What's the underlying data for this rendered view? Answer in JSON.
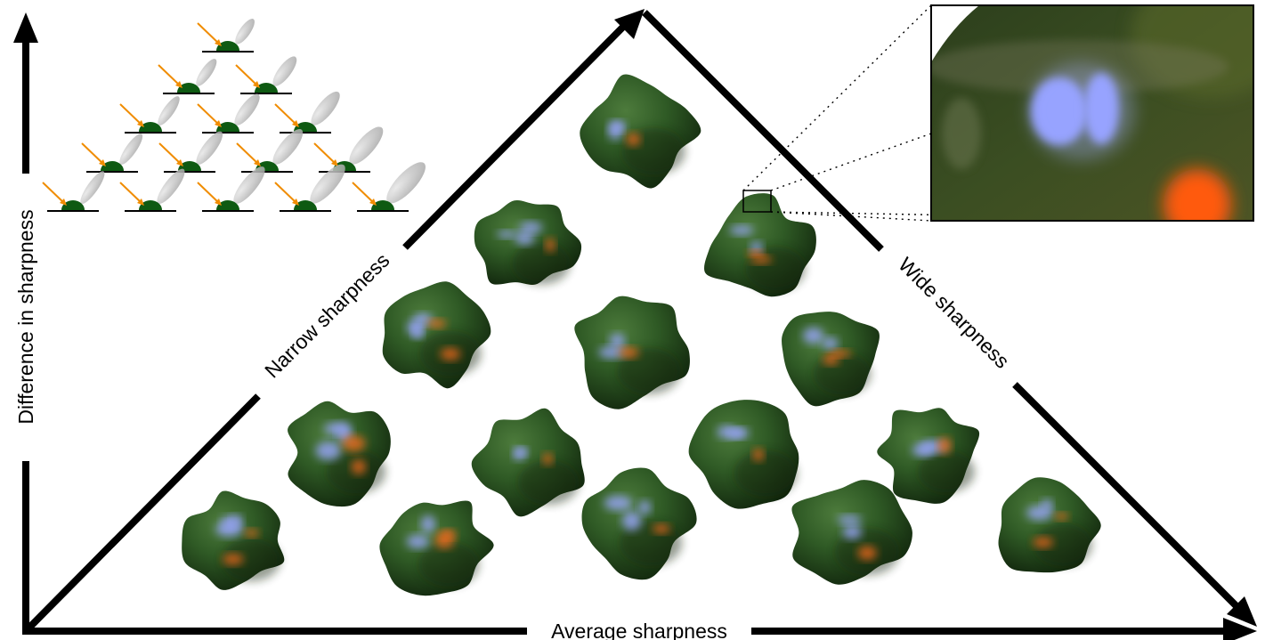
{
  "labels": {
    "y_axis": "Difference in sharpness",
    "x_axis": "Average sharpness",
    "left_edge": "Narrow sharpness",
    "right_edge": "Wide sharpness"
  },
  "colors": {
    "blob_green": "#2f5a25",
    "blob_dark": "#12280f",
    "highlight_blue": "#9aa6ff",
    "highlight_orange": "#ff6a1a",
    "light_arrow": "#f08c00",
    "icon_dome": "#0e5a12",
    "lobe_gray": "#b4b4b4"
  },
  "legend_icons": {
    "rows": [
      1,
      2,
      3,
      4,
      5
    ]
  },
  "blob_grid": {
    "rows": [
      1,
      2,
      3,
      4,
      5
    ]
  }
}
